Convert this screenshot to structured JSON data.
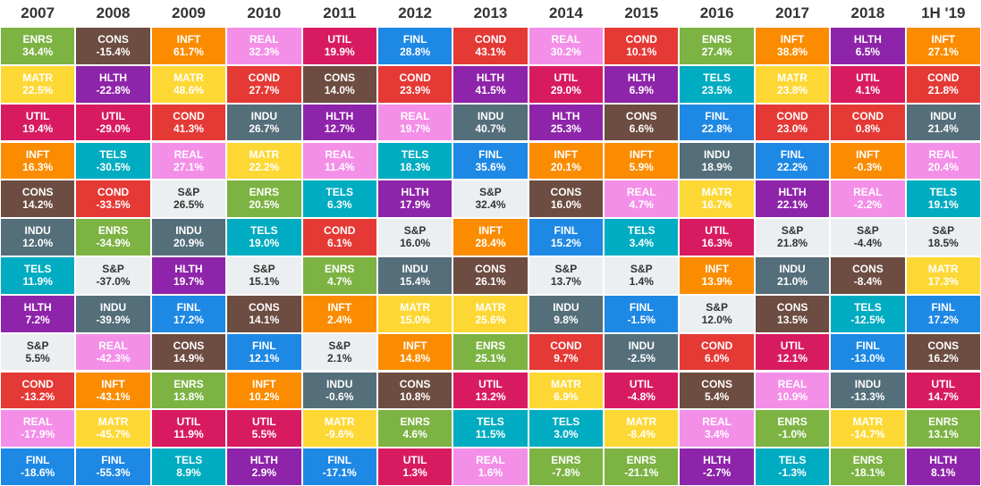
{
  "colors": {
    "ENRS": "#7cb342",
    "CONS": "#6d4c41",
    "INFT": "#fb8c00",
    "REAL": "#f48fe8",
    "UTIL": "#d81b60",
    "FINL": "#1e88e5",
    "COND": "#e53935",
    "HLTH": "#8e24aa",
    "TELS": "#00acc1",
    "MATR": "#fdd835",
    "INDU": "#546e7a",
    "S&P": "#eceff1"
  },
  "chart_data": {
    "type": "table",
    "columns": [
      {
        "year": "2007",
        "cells": [
          {
            "sector": "ENRS",
            "value": "34.4%"
          },
          {
            "sector": "MATR",
            "value": "22.5%"
          },
          {
            "sector": "UTIL",
            "value": "19.4%"
          },
          {
            "sector": "INFT",
            "value": "16.3%"
          },
          {
            "sector": "CONS",
            "value": "14.2%"
          },
          {
            "sector": "INDU",
            "value": "12.0%"
          },
          {
            "sector": "TELS",
            "value": "11.9%"
          },
          {
            "sector": "HLTH",
            "value": "7.2%"
          },
          {
            "sector": "S&P",
            "value": "5.5%"
          },
          {
            "sector": "COND",
            "value": "-13.2%"
          },
          {
            "sector": "REAL",
            "value": "-17.9%"
          },
          {
            "sector": "FINL",
            "value": "-18.6%"
          }
        ]
      },
      {
        "year": "2008",
        "cells": [
          {
            "sector": "CONS",
            "value": "-15.4%"
          },
          {
            "sector": "HLTH",
            "value": "-22.8%"
          },
          {
            "sector": "UTIL",
            "value": "-29.0%"
          },
          {
            "sector": "TELS",
            "value": "-30.5%"
          },
          {
            "sector": "COND",
            "value": "-33.5%"
          },
          {
            "sector": "ENRS",
            "value": "-34.9%"
          },
          {
            "sector": "S&P",
            "value": "-37.0%"
          },
          {
            "sector": "INDU",
            "value": "-39.9%"
          },
          {
            "sector": "REAL",
            "value": "-42.3%"
          },
          {
            "sector": "INFT",
            "value": "-43.1%"
          },
          {
            "sector": "MATR",
            "value": "-45.7%"
          },
          {
            "sector": "FINL",
            "value": "-55.3%"
          }
        ]
      },
      {
        "year": "2009",
        "cells": [
          {
            "sector": "INFT",
            "value": "61.7%"
          },
          {
            "sector": "MATR",
            "value": "48.6%"
          },
          {
            "sector": "COND",
            "value": "41.3%"
          },
          {
            "sector": "REAL",
            "value": "27.1%"
          },
          {
            "sector": "S&P",
            "value": "26.5%"
          },
          {
            "sector": "INDU",
            "value": "20.9%"
          },
          {
            "sector": "HLTH",
            "value": "19.7%"
          },
          {
            "sector": "FINL",
            "value": "17.2%"
          },
          {
            "sector": "CONS",
            "value": "14.9%"
          },
          {
            "sector": "ENRS",
            "value": "13.8%"
          },
          {
            "sector": "UTIL",
            "value": "11.9%"
          },
          {
            "sector": "TELS",
            "value": "8.9%"
          }
        ]
      },
      {
        "year": "2010",
        "cells": [
          {
            "sector": "REAL",
            "value": "32.3%"
          },
          {
            "sector": "COND",
            "value": "27.7%"
          },
          {
            "sector": "INDU",
            "value": "26.7%"
          },
          {
            "sector": "MATR",
            "value": "22.2%"
          },
          {
            "sector": "ENRS",
            "value": "20.5%"
          },
          {
            "sector": "TELS",
            "value": "19.0%"
          },
          {
            "sector": "S&P",
            "value": "15.1%"
          },
          {
            "sector": "CONS",
            "value": "14.1%"
          },
          {
            "sector": "FINL",
            "value": "12.1%"
          },
          {
            "sector": "INFT",
            "value": "10.2%"
          },
          {
            "sector": "UTIL",
            "value": "5.5%"
          },
          {
            "sector": "HLTH",
            "value": "2.9%"
          }
        ]
      },
      {
        "year": "2011",
        "cells": [
          {
            "sector": "UTIL",
            "value": "19.9%"
          },
          {
            "sector": "CONS",
            "value": "14.0%"
          },
          {
            "sector": "HLTH",
            "value": "12.7%"
          },
          {
            "sector": "REAL",
            "value": "11.4%"
          },
          {
            "sector": "TELS",
            "value": "6.3%"
          },
          {
            "sector": "COND",
            "value": "6.1%"
          },
          {
            "sector": "ENRS",
            "value": "4.7%"
          },
          {
            "sector": "INFT",
            "value": "2.4%"
          },
          {
            "sector": "S&P",
            "value": "2.1%"
          },
          {
            "sector": "INDU",
            "value": "-0.6%"
          },
          {
            "sector": "MATR",
            "value": "-9.6%"
          },
          {
            "sector": "FINL",
            "value": "-17.1%"
          }
        ]
      },
      {
        "year": "2012",
        "cells": [
          {
            "sector": "FINL",
            "value": "28.8%"
          },
          {
            "sector": "COND",
            "value": "23.9%"
          },
          {
            "sector": "REAL",
            "value": "19.7%"
          },
          {
            "sector": "TELS",
            "value": "18.3%"
          },
          {
            "sector": "HLTH",
            "value": "17.9%"
          },
          {
            "sector": "S&P",
            "value": "16.0%"
          },
          {
            "sector": "INDU",
            "value": "15.4%"
          },
          {
            "sector": "MATR",
            "value": "15.0%"
          },
          {
            "sector": "INFT",
            "value": "14.8%"
          },
          {
            "sector": "CONS",
            "value": "10.8%"
          },
          {
            "sector": "ENRS",
            "value": "4.6%"
          },
          {
            "sector": "UTIL",
            "value": "1.3%"
          }
        ]
      },
      {
        "year": "2013",
        "cells": [
          {
            "sector": "COND",
            "value": "43.1%"
          },
          {
            "sector": "HLTH",
            "value": "41.5%"
          },
          {
            "sector": "INDU",
            "value": "40.7%"
          },
          {
            "sector": "FINL",
            "value": "35.6%"
          },
          {
            "sector": "S&P",
            "value": "32.4%"
          },
          {
            "sector": "INFT",
            "value": "28.4%"
          },
          {
            "sector": "CONS",
            "value": "26.1%"
          },
          {
            "sector": "MATR",
            "value": "25.6%"
          },
          {
            "sector": "ENRS",
            "value": "25.1%"
          },
          {
            "sector": "UTIL",
            "value": "13.2%"
          },
          {
            "sector": "TELS",
            "value": "11.5%"
          },
          {
            "sector": "REAL",
            "value": "1.6%"
          }
        ]
      },
      {
        "year": "2014",
        "cells": [
          {
            "sector": "REAL",
            "value": "30.2%"
          },
          {
            "sector": "UTIL",
            "value": "29.0%"
          },
          {
            "sector": "HLTH",
            "value": "25.3%"
          },
          {
            "sector": "INFT",
            "value": "20.1%"
          },
          {
            "sector": "CONS",
            "value": "16.0%"
          },
          {
            "sector": "FINL",
            "value": "15.2%"
          },
          {
            "sector": "S&P",
            "value": "13.7%"
          },
          {
            "sector": "INDU",
            "value": "9.8%"
          },
          {
            "sector": "COND",
            "value": "9.7%"
          },
          {
            "sector": "MATR",
            "value": "6.9%"
          },
          {
            "sector": "TELS",
            "value": "3.0%"
          },
          {
            "sector": "ENRS",
            "value": "-7.8%"
          }
        ]
      },
      {
        "year": "2015",
        "cells": [
          {
            "sector": "COND",
            "value": "10.1%"
          },
          {
            "sector": "HLTH",
            "value": "6.9%"
          },
          {
            "sector": "CONS",
            "value": "6.6%"
          },
          {
            "sector": "INFT",
            "value": "5.9%"
          },
          {
            "sector": "REAL",
            "value": "4.7%"
          },
          {
            "sector": "TELS",
            "value": "3.4%"
          },
          {
            "sector": "S&P",
            "value": "1.4%"
          },
          {
            "sector": "FINL",
            "value": "-1.5%"
          },
          {
            "sector": "INDU",
            "value": "-2.5%"
          },
          {
            "sector": "UTIL",
            "value": "-4.8%"
          },
          {
            "sector": "MATR",
            "value": "-8.4%"
          },
          {
            "sector": "ENRS",
            "value": "-21.1%"
          }
        ]
      },
      {
        "year": "2016",
        "cells": [
          {
            "sector": "ENRS",
            "value": "27.4%"
          },
          {
            "sector": "TELS",
            "value": "23.5%"
          },
          {
            "sector": "FINL",
            "value": "22.8%"
          },
          {
            "sector": "INDU",
            "value": "18.9%"
          },
          {
            "sector": "MATR",
            "value": "16.7%"
          },
          {
            "sector": "UTIL",
            "value": "16.3%"
          },
          {
            "sector": "INFT",
            "value": "13.9%"
          },
          {
            "sector": "S&P",
            "value": "12.0%"
          },
          {
            "sector": "COND",
            "value": "6.0%"
          },
          {
            "sector": "CONS",
            "value": "5.4%"
          },
          {
            "sector": "REAL",
            "value": "3.4%"
          },
          {
            "sector": "HLTH",
            "value": "-2.7%"
          }
        ]
      },
      {
        "year": "2017",
        "cells": [
          {
            "sector": "INFT",
            "value": "38.8%"
          },
          {
            "sector": "MATR",
            "value": "23.8%"
          },
          {
            "sector": "COND",
            "value": "23.0%"
          },
          {
            "sector": "FINL",
            "value": "22.2%"
          },
          {
            "sector": "HLTH",
            "value": "22.1%"
          },
          {
            "sector": "S&P",
            "value": "21.8%"
          },
          {
            "sector": "INDU",
            "value": "21.0%"
          },
          {
            "sector": "CONS",
            "value": "13.5%"
          },
          {
            "sector": "UTIL",
            "value": "12.1%"
          },
          {
            "sector": "REAL",
            "value": "10.9%"
          },
          {
            "sector": "ENRS",
            "value": "-1.0%"
          },
          {
            "sector": "TELS",
            "value": "-1.3%"
          }
        ]
      },
      {
        "year": "2018",
        "cells": [
          {
            "sector": "HLTH",
            "value": "6.5%"
          },
          {
            "sector": "UTIL",
            "value": "4.1%"
          },
          {
            "sector": "COND",
            "value": "0.8%"
          },
          {
            "sector": "INFT",
            "value": "-0.3%"
          },
          {
            "sector": "REAL",
            "value": "-2.2%"
          },
          {
            "sector": "S&P",
            "value": "-4.4%"
          },
          {
            "sector": "CONS",
            "value": "-8.4%"
          },
          {
            "sector": "TELS",
            "value": "-12.5%"
          },
          {
            "sector": "FINL",
            "value": "-13.0%"
          },
          {
            "sector": "INDU",
            "value": "-13.3%"
          },
          {
            "sector": "MATR",
            "value": "-14.7%"
          },
          {
            "sector": "ENRS",
            "value": "-18.1%"
          }
        ]
      },
      {
        "year": "1H '19",
        "cells": [
          {
            "sector": "INFT",
            "value": "27.1%"
          },
          {
            "sector": "COND",
            "value": "21.8%"
          },
          {
            "sector": "INDU",
            "value": "21.4%"
          },
          {
            "sector": "REAL",
            "value": "20.4%"
          },
          {
            "sector": "TELS",
            "value": "19.1%"
          },
          {
            "sector": "S&P",
            "value": "18.5%"
          },
          {
            "sector": "MATR",
            "value": "17.3%"
          },
          {
            "sector": "FINL",
            "value": "17.2%"
          },
          {
            "sector": "CONS",
            "value": "16.2%"
          },
          {
            "sector": "UTIL",
            "value": "14.7%"
          },
          {
            "sector": "ENRS",
            "value": "13.1%"
          },
          {
            "sector": "HLTH",
            "value": "8.1%"
          }
        ]
      }
    ]
  }
}
